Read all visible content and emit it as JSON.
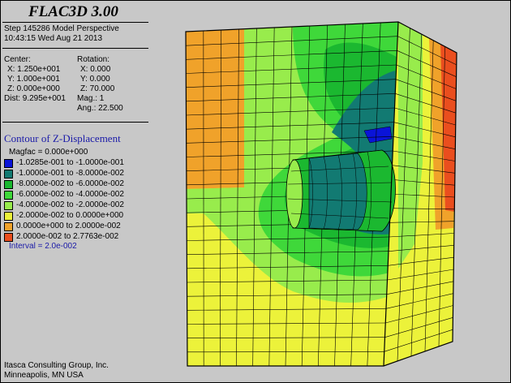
{
  "app_title": "FLAC3D 3.00",
  "step_line": "Step 145286  Model Perspective",
  "timestamp": "10:43:15 Wed Aug 21 2013",
  "center": {
    "label": "Center:",
    "x": "X: 1.250e+001",
    "y": "Y: 1.000e+001",
    "z": "Z: 0.000e+000",
    "dist": "Dist: 9.295e+001"
  },
  "rotation": {
    "label": "Rotation:",
    "x": "X:   0.000",
    "y": "Y:   0.000",
    "z": "Z:  70.000",
    "mag": "Mag.:        1",
    "ang": "Ang.:  22.500"
  },
  "contour": {
    "title": "Contour of Z-Displacement",
    "magfac": "Magfac =  0.000e+000",
    "interval": "Interval =  2.0e-002",
    "legend": [
      {
        "label": "-1.0285e-001 to -1.0000e-001",
        "color": "#0a14d8"
      },
      {
        "label": "-1.0000e-001 to -8.0000e-002",
        "color": "#127a72"
      },
      {
        "label": "-8.0000e-002 to -6.0000e-002",
        "color": "#1bb830"
      },
      {
        "label": "-6.0000e-002 to -4.0000e-002",
        "color": "#3fd83a"
      },
      {
        "label": "-4.0000e-002 to -2.0000e-002",
        "color": "#98ec4c"
      },
      {
        "label": "-2.0000e-002 to  0.0000e+000",
        "color": "#ecf23a"
      },
      {
        "label": " 0.0000e+000 to  2.0000e-002",
        "color": "#f0a22a"
      },
      {
        "label": " 2.0000e-002 to  2.7763e-002",
        "color": "#ea4e1e"
      }
    ]
  },
  "footer": {
    "company": "Itasca Consulting Group, Inc.",
    "location": "Minneapolis, MN  USA"
  }
}
